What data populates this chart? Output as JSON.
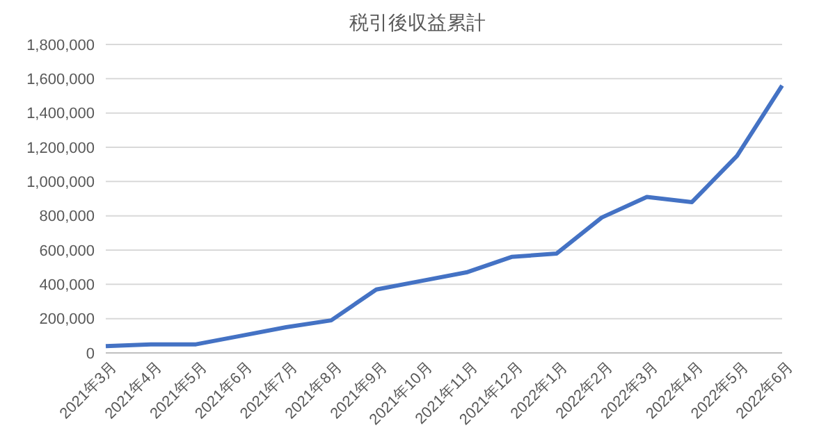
{
  "chart_data": {
    "type": "line",
    "title": "税引後収益累計",
    "categories": [
      "2021年3月",
      "2021年4月",
      "2021年5月",
      "2021年6月",
      "2021年7月",
      "2021年8月",
      "2021年9月",
      "2021年10月",
      "2021年11月",
      "2021年12月",
      "2022年1月",
      "2022年2月",
      "2022年3月",
      "2022年4月",
      "2022年5月",
      "2022年6月"
    ],
    "series": [
      {
        "color": "#4472c4",
        "values": [
          40000,
          50000,
          50000,
          100000,
          150000,
          190000,
          370000,
          420000,
          470000,
          560000,
          580000,
          790000,
          910000,
          880000,
          1150000,
          1560000
        ]
      }
    ],
    "ylim": [
      0,
      1800000
    ],
    "yticks": [
      0,
      {
        "value": 200000,
        "label": "200,000"
      },
      {
        "value": 400000,
        "label": "400,000"
      },
      {
        "value": 600000,
        "label": "600,000"
      },
      {
        "value": 800000,
        "label": "800,000"
      },
      {
        "value": 1000000,
        "label": "1,000,000"
      },
      {
        "value": 1200000,
        "label": "1,200,000"
      },
      {
        "value": 1400000,
        "label": "1,400,000"
      },
      {
        "value": 1600000,
        "label": "1,600,000"
      },
      {
        "value": 1800000,
        "label": "1,800,000"
      }
    ],
    "grid": "y",
    "legend": false,
    "marker": "none",
    "line_style": "solid"
  }
}
